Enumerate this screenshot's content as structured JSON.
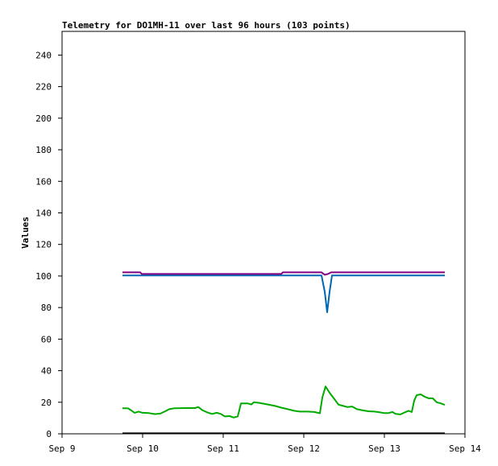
{
  "chart_data": {
    "type": "line",
    "title": "Telemetry for DO1MH-11 over last 96 hours (103 points)",
    "xlabel": "",
    "ylabel": "Values",
    "xlim": [
      9.0,
      14.0
    ],
    "ylim": [
      0,
      255
    ],
    "x_ticks": [
      "Sep 9",
      "Sep 10",
      "Sep 11",
      "Sep 12",
      "Sep 13",
      "Sep 14"
    ],
    "y_ticks": [
      0,
      20,
      40,
      60,
      80,
      100,
      120,
      140,
      160,
      180,
      200,
      220,
      240
    ],
    "grid": false,
    "legend": "none",
    "series": [
      {
        "color": "#0066b3",
        "points": [
          [
            9.75,
            100.3
          ],
          [
            10.5,
            100.3
          ],
          [
            11.0,
            100.3
          ],
          [
            11.5,
            100.3
          ],
          [
            12.0,
            100.3
          ],
          [
            12.22,
            100.3
          ],
          [
            12.26,
            90
          ],
          [
            12.29,
            77
          ],
          [
            12.32,
            90
          ],
          [
            12.35,
            100.3
          ],
          [
            12.6,
            100.3
          ],
          [
            13.0,
            100.3
          ],
          [
            13.75,
            100.3
          ]
        ]
      },
      {
        "color": "#800080",
        "points": [
          [
            9.75,
            102.3
          ],
          [
            9.97,
            102.3
          ],
          [
            9.99,
            101.3
          ],
          [
            11.0,
            101.3
          ],
          [
            11.72,
            101.3
          ],
          [
            11.74,
            102.3
          ],
          [
            12.22,
            102.3
          ],
          [
            12.26,
            100.8
          ],
          [
            12.3,
            101.3
          ],
          [
            12.34,
            102.3
          ],
          [
            13.0,
            102.3
          ],
          [
            13.75,
            102.3
          ]
        ]
      },
      {
        "color": "#00aa00",
        "points": [
          [
            9.75,
            16.2
          ],
          [
            9.82,
            16.1
          ],
          [
            9.86,
            14.8
          ],
          [
            9.9,
            13.3
          ],
          [
            9.95,
            14.1
          ],
          [
            10.0,
            13.3
          ],
          [
            10.08,
            13.1
          ],
          [
            10.15,
            12.5
          ],
          [
            10.22,
            12.8
          ],
          [
            10.28,
            14.3
          ],
          [
            10.33,
            15.6
          ],
          [
            10.4,
            16.2
          ],
          [
            10.55,
            16.3
          ],
          [
            10.65,
            16.3
          ],
          [
            10.69,
            17.0
          ],
          [
            10.74,
            15.0
          ],
          [
            10.8,
            13.6
          ],
          [
            10.86,
            12.6
          ],
          [
            10.92,
            13.3
          ],
          [
            10.97,
            12.6
          ],
          [
            11.02,
            11.0
          ],
          [
            11.08,
            11.2
          ],
          [
            11.13,
            10.3
          ],
          [
            11.18,
            11.0
          ],
          [
            11.2,
            15.0
          ],
          [
            11.22,
            19.3
          ],
          [
            11.3,
            19.3
          ],
          [
            11.35,
            18.6
          ],
          [
            11.38,
            20.0
          ],
          [
            11.45,
            19.6
          ],
          [
            11.55,
            18.6
          ],
          [
            11.65,
            17.6
          ],
          [
            11.72,
            16.6
          ],
          [
            11.8,
            15.6
          ],
          [
            11.88,
            14.6
          ],
          [
            11.95,
            14.1
          ],
          [
            12.05,
            14.1
          ],
          [
            12.13,
            13.8
          ],
          [
            12.2,
            13.0
          ],
          [
            12.23,
            23.0
          ],
          [
            12.27,
            30.0
          ],
          [
            12.32,
            26.0
          ],
          [
            12.38,
            22.0
          ],
          [
            12.43,
            18.5
          ],
          [
            12.48,
            17.8
          ],
          [
            12.54,
            17.0
          ],
          [
            12.6,
            17.3
          ],
          [
            12.66,
            15.6
          ],
          [
            12.72,
            15.0
          ],
          [
            12.8,
            14.3
          ],
          [
            12.88,
            14.1
          ],
          [
            12.94,
            13.6
          ],
          [
            13.0,
            13.1
          ],
          [
            13.05,
            13.1
          ],
          [
            13.1,
            13.8
          ],
          [
            13.14,
            12.6
          ],
          [
            13.2,
            12.3
          ],
          [
            13.25,
            13.5
          ],
          [
            13.3,
            14.6
          ],
          [
            13.34,
            13.8
          ],
          [
            13.37,
            21.0
          ],
          [
            13.4,
            24.5
          ],
          [
            13.45,
            25.0
          ],
          [
            13.5,
            23.5
          ],
          [
            13.55,
            22.5
          ],
          [
            13.6,
            22.5
          ],
          [
            13.65,
            20.0
          ],
          [
            13.7,
            19.3
          ],
          [
            13.75,
            18.3
          ]
        ]
      },
      {
        "color": "#000000",
        "points": [
          [
            9.75,
            0.3
          ],
          [
            13.75,
            0.3
          ]
        ]
      }
    ]
  }
}
